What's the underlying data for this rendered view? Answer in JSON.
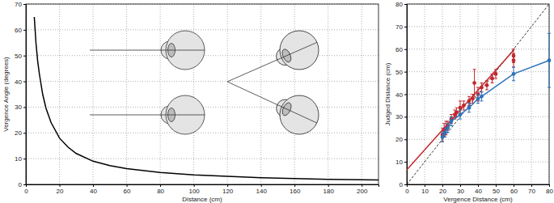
{
  "chart_data": [
    {
      "type": "line",
      "x_label": "Distance (cm)",
      "y_label": "Vergence Angle (degrees)",
      "xlim": [
        0,
        210
      ],
      "ylim": [
        0,
        70
      ],
      "xticks": [
        0,
        20,
        40,
        60,
        80,
        100,
        120,
        140,
        160,
        180,
        200
      ],
      "yticks": [
        0,
        10,
        20,
        30,
        40,
        50,
        60,
        70
      ],
      "grid": true,
      "series": [
        {
          "type": "line",
          "color": "#000000",
          "line_style": "solid",
          "x": [
            5,
            6,
            7,
            8,
            10,
            12,
            15,
            20,
            25,
            30,
            40,
            50,
            60,
            80,
            100,
            120,
            140,
            160,
            180,
            210
          ],
          "values": [
            65,
            55,
            48,
            43,
            35,
            29.5,
            24,
            18,
            14.5,
            12,
            9,
            7.3,
            6.1,
            4.6,
            3.7,
            3.1,
            2.6,
            2.3,
            2.0,
            1.7
          ]
        }
      ]
    },
    {
      "type": "scatter",
      "x_label": "Vergence Distance (cm)",
      "y_label": "Judged Distance (cm)",
      "xlim": [
        0,
        80
      ],
      "ylim": [
        0,
        80
      ],
      "xticks": [
        0,
        10,
        20,
        30,
        40,
        50,
        60,
        70,
        80
      ],
      "yticks": [
        0,
        10,
        20,
        30,
        40,
        50,
        60,
        70,
        80
      ],
      "grid": true,
      "series": [
        {
          "type": "line",
          "color": "#000000",
          "line_style": "dashed",
          "x": [
            0,
            80
          ],
          "values": [
            0,
            80
          ]
        },
        {
          "type": "line",
          "color": "#c1272d",
          "line_style": "solid",
          "x": [
            0,
            60
          ],
          "values": [
            6.5,
            59.5
          ]
        },
        {
          "type": "scatter",
          "color": "#c1272d",
          "marker": "circle",
          "x": [
            20,
            21,
            22,
            23,
            25,
            27,
            28,
            30,
            32,
            35,
            37,
            38,
            40,
            42,
            45,
            48,
            50,
            60,
            60
          ],
          "values": [
            22,
            24,
            25,
            26,
            29,
            31,
            32,
            34,
            35,
            37,
            38,
            45,
            40,
            43,
            44,
            47,
            49,
            55,
            57
          ],
          "errors": [
            3,
            3,
            3,
            2,
            2,
            2,
            2,
            3,
            2,
            2,
            2,
            6,
            3,
            2,
            2,
            2,
            2,
            3,
            3
          ]
        },
        {
          "type": "line",
          "color": "#2e73b8",
          "marker": "circle",
          "line_style": "solid",
          "x": [
            20,
            21.5,
            23,
            25,
            30,
            35,
            40,
            42,
            60,
            80
          ],
          "values": [
            21,
            23,
            25,
            28,
            31,
            34,
            38,
            39,
            49,
            55
          ],
          "errors": [
            2,
            2,
            2,
            2,
            2,
            2,
            2,
            2,
            3,
            12
          ]
        }
      ]
    }
  ]
}
